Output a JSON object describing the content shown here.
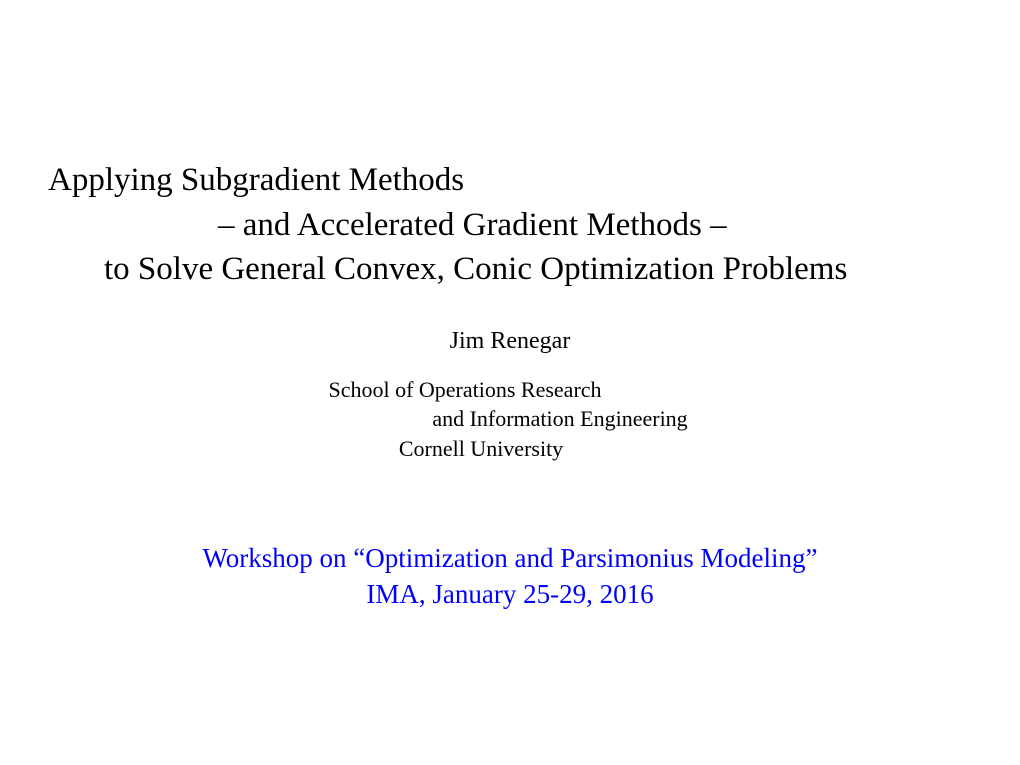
{
  "title": {
    "line1": "Applying Subgradient Methods",
    "line2": "– and Accelerated Gradient Methods –",
    "line3": "to Solve General Convex, Conic Optimization Problems"
  },
  "author": "Jim Renegar",
  "affiliation": {
    "line1": "School of Operations Research",
    "line2": "and Information Engineering",
    "line3": "Cornell University"
  },
  "workshop": {
    "line1": "Workshop on “Optimization and Parsimonius Modeling”",
    "line2": "IMA, January 25-29, 2016"
  },
  "colors": {
    "background": "#ffffff",
    "text": "#000000",
    "link": "#0000ff"
  },
  "typography": {
    "font_family": "Times New Roman",
    "title_fontsize": 33,
    "author_fontsize": 24,
    "affiliation_fontsize": 22,
    "workshop_fontsize": 27
  }
}
